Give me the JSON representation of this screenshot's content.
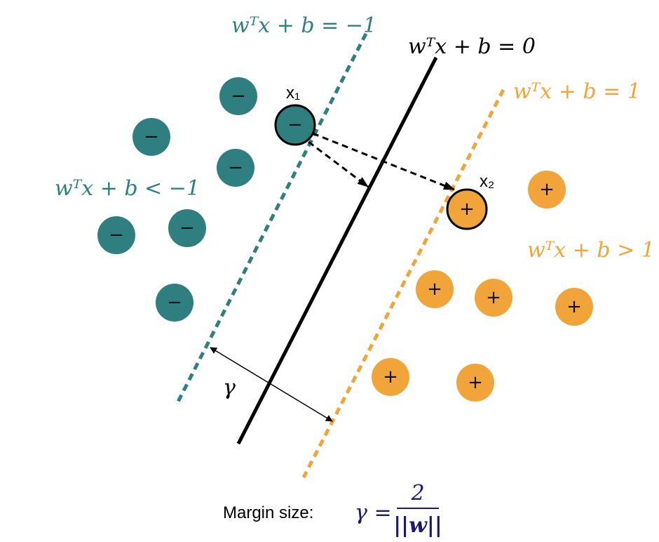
{
  "equations": {
    "minus_one": "wᵀx + b = −1",
    "zero": "wᵀx + b = 0",
    "plus_one": "wᵀx + b = 1",
    "negative_region": "wᵀx + b < −1",
    "positive_region": "wᵀx + b > 1"
  },
  "points": {
    "negative_sign": "−",
    "positive_sign": "+",
    "x1_label": "x₁",
    "x2_label": "x₂"
  },
  "margin_symbol": "γ",
  "footer": {
    "label": "Margin size:",
    "lhs": "γ =",
    "numerator": "2",
    "denominator": "||w||"
  }
}
